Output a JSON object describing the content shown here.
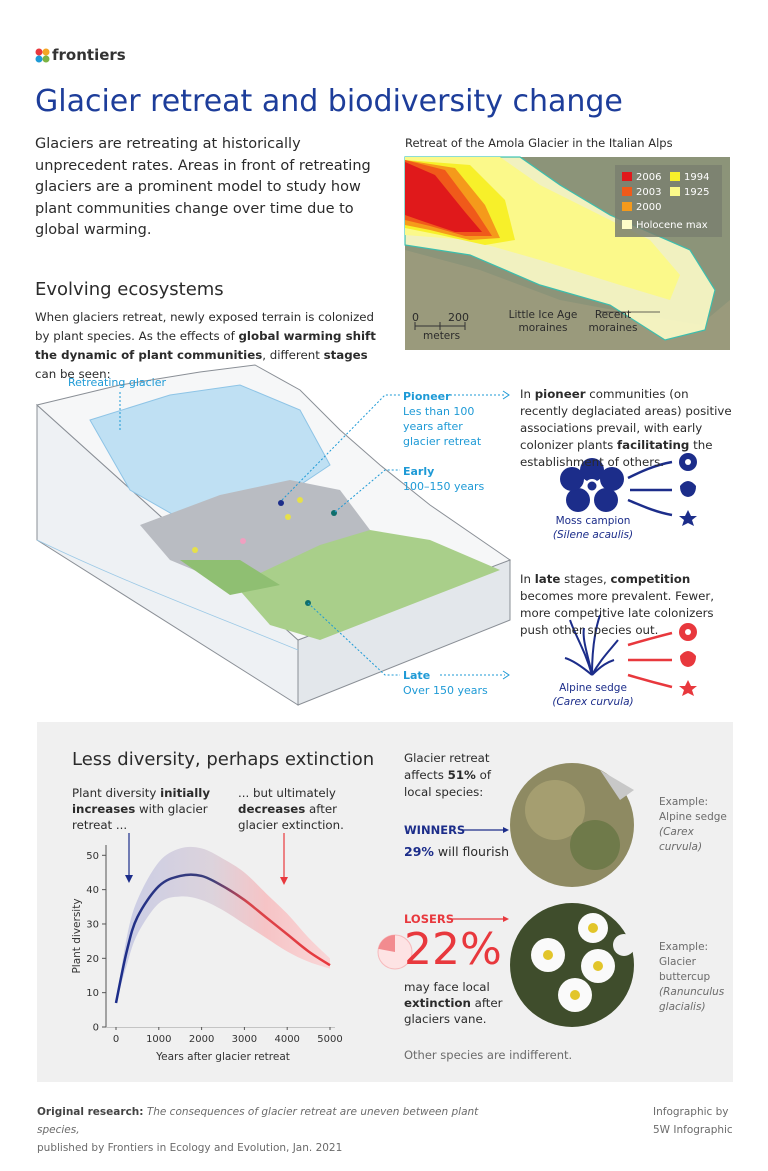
{
  "header": {
    "logo": "frontiers",
    "title": "Glacier retreat and biodiversity change"
  },
  "intro": "Glaciers are retreating at historically unprecedent rates. Areas in front of retreating glaciers are a prominent model to study how plant communities change over time due to global warming.",
  "map": {
    "caption": "Retreat of the Amola Glacier in the Italian Alps",
    "legend": [
      {
        "label": "2006",
        "color": "#e0191b"
      },
      {
        "label": "1994",
        "color": "#f7f02a"
      },
      {
        "label": "2003",
        "color": "#f05a1a"
      },
      {
        "label": "1925",
        "color": "#fbf98a"
      },
      {
        "label": "2000",
        "color": "#f59a1b"
      },
      {
        "label": "Holocene max",
        "color": "#fdfcc8"
      }
    ],
    "scale": {
      "ticks": [
        "0",
        "200"
      ],
      "unit": "meters"
    },
    "annotations": [
      "Little Ice Age moraines",
      "Recent moraines"
    ]
  },
  "ecosystems": {
    "heading": "Evolving ecosystems",
    "text": [
      "When glaciers retreat, newly exposed terrain is colonized by plant species. As the effects of ",
      "global warming shift the dynamic of plant communities",
      ", different ",
      "stages",
      " can be seen:"
    ],
    "glacier_label": "Retreating glacier",
    "stages": [
      {
        "name": "Pioneer",
        "detail": "Les than 100 years after glacier retreat"
      },
      {
        "name": "Early",
        "detail": "100–150 years"
      },
      {
        "name": "Late",
        "detail": "Over 150 years"
      }
    ],
    "pioneer_text": [
      "In ",
      "pioneer",
      " communities (on recently deglaciated areas) positive associations prevail, with early colonizer plants ",
      "facilitating",
      " the establishment of others."
    ],
    "pioneer_plant": {
      "name": "Moss campion",
      "latin": "(Silene acaulis)"
    },
    "late_text": [
      "In ",
      "late",
      " stages, ",
      "competition",
      " becomes more prevalent. Fewer, more competitive late colonizers push other species out."
    ],
    "late_plant": {
      "name": "Alpine sedge",
      "latin": "(Carex curvula)"
    }
  },
  "diversity": {
    "heading": "Less diversity, perhaps extinction",
    "note_left": [
      "Plant diversity ",
      "initially increases",
      " with glacier retreat ..."
    ],
    "note_right": [
      "... but ultimately ",
      "decreases",
      " after glacier extinction."
    ],
    "chart": {
      "type": "line",
      "x_label": "Years after glacier retreat",
      "y_label": "Plant diversity",
      "x": [
        0,
        250,
        500,
        1000,
        1500,
        2000,
        2500,
        3000,
        3500,
        4000,
        4500,
        5000
      ],
      "values": [
        7,
        22,
        32,
        41,
        44,
        44,
        41,
        37,
        32,
        27,
        22,
        18
      ],
      "upper": [
        7,
        26,
        37,
        48,
        52,
        52,
        49,
        45,
        39,
        33,
        26,
        20
      ],
      "lower": [
        7,
        18,
        27,
        36,
        38,
        37,
        34,
        30,
        26,
        22,
        19,
        17
      ],
      "xlim": [
        0,
        5000
      ],
      "ylim": [
        0,
        53
      ],
      "xticks": [
        0,
        1000,
        2000,
        3000,
        4000,
        5000
      ],
      "yticks": [
        0,
        10,
        20,
        30,
        40,
        50
      ]
    },
    "affects": [
      "Glacier retreat affects ",
      "51%",
      " of local species:"
    ],
    "winners": {
      "label": "WINNERS",
      "text": [
        "29%",
        " will flourish"
      ]
    },
    "losers": {
      "label": "LOSERS",
      "share": {
        "value": 22,
        "label": "22%"
      },
      "text": [
        "may face local ",
        "extinction",
        " after glaciers vane."
      ]
    },
    "examples": [
      {
        "text": "Example: Alpine sedge",
        "latin": "(Carex curvula)"
      },
      {
        "text": "Example: Glacier buttercup",
        "latin": "(Ranunculus glacialis)"
      }
    ],
    "footnote": "Other species are indifferent."
  },
  "footer": {
    "source_label": "Original research:",
    "source": "The consequences of glacier retreat are uneven between plant species,",
    "published": "published by Frontiers in Ecology and Evolution, Jan. 2021",
    "credit": [
      "Infographic by",
      "5W Infographic"
    ]
  }
}
